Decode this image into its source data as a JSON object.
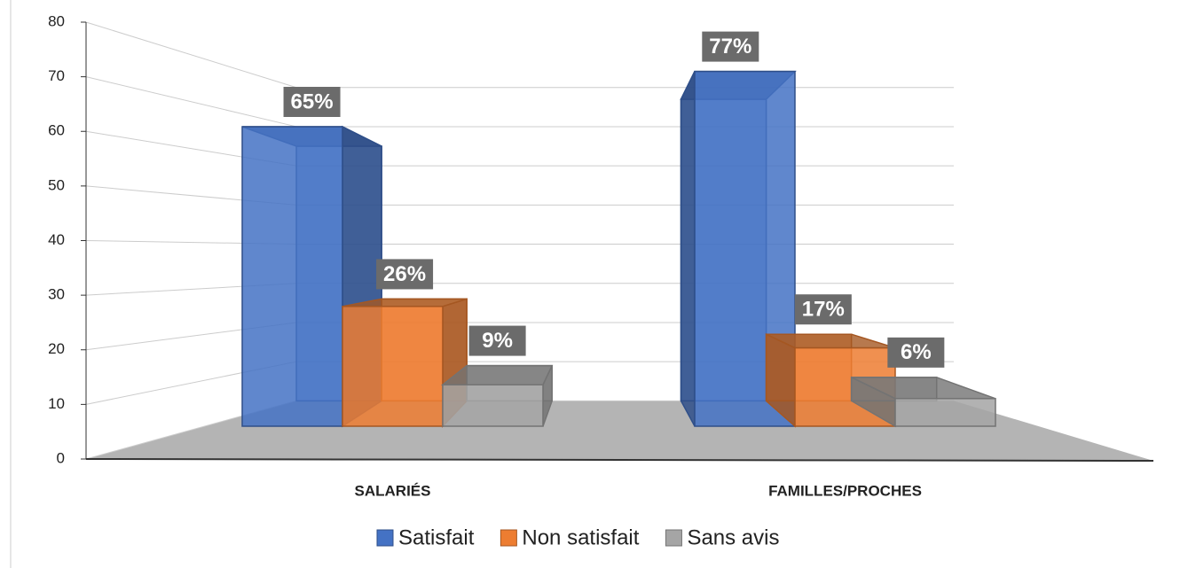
{
  "chart_data": {
    "type": "bar3d",
    "categories": [
      "SALARIÉS",
      "FAMILLES/PROCHES"
    ],
    "series": [
      {
        "name": "Satisfait",
        "color": "#4472c4",
        "values": [
          65,
          77
        ],
        "value_labels": [
          "65%",
          "77%"
        ]
      },
      {
        "name": "Non satisfait",
        "color": "#ed7d31",
        "values": [
          26,
          17
        ],
        "value_labels": [
          "26%",
          "17%"
        ]
      },
      {
        "name": "Sans avis",
        "color": "#a5a5a5",
        "values": [
          9,
          6
        ],
        "value_labels": [
          "9%",
          "6%"
        ]
      }
    ],
    "ylim": [
      0,
      80
    ],
    "yticks": [
      0,
      10,
      20,
      30,
      40,
      50,
      60,
      70,
      80
    ],
    "grid": true,
    "legend": "bottom"
  }
}
